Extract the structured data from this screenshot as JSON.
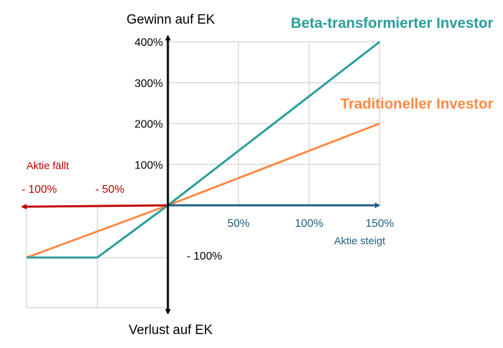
{
  "chart_data": {
    "type": "line",
    "y_axis_top_label": "Gewinn auf EK",
    "y_axis_bottom_label": "Verlust auf EK",
    "x_axis_right_label": "Aktie steigt",
    "x_axis_left_label": "Aktie fällt",
    "x_pos_ticks": [
      {
        "v": 50,
        "label": "50%"
      },
      {
        "v": 100,
        "label": "100%"
      },
      {
        "v": 150,
        "label": "150%"
      }
    ],
    "x_neg_ticks": [
      {
        "v": -100,
        "label": "- 100%"
      },
      {
        "v": -50,
        "label": "- 50%"
      }
    ],
    "y_pos_ticks": [
      {
        "v": 100,
        "label": "100%"
      },
      {
        "v": 200,
        "label": "200%"
      },
      {
        "v": 300,
        "label": "300%"
      },
      {
        "v": 400,
        "label": "400%"
      }
    ],
    "y_neg_ticks": [
      {
        "v": -100,
        "label": "- 100%"
      }
    ],
    "xlim": [
      -100,
      150
    ],
    "ylim": [
      -100,
      400
    ],
    "series": [
      {
        "name": "Beta-transformierter Investor",
        "color": "#2a9d9a",
        "x": [
          -100,
          -50,
          0,
          150
        ],
        "y": [
          -100,
          -100,
          0,
          400
        ]
      },
      {
        "name": "Traditioneller Investor",
        "color": "#ff8a45",
        "x": [
          -100,
          0,
          150
        ],
        "y": [
          -100,
          0,
          200
        ]
      }
    ],
    "colors": {
      "neg_axis": "#c00000",
      "pos_axis": "#1f5f80",
      "grid": "#d9d9d9"
    }
  }
}
